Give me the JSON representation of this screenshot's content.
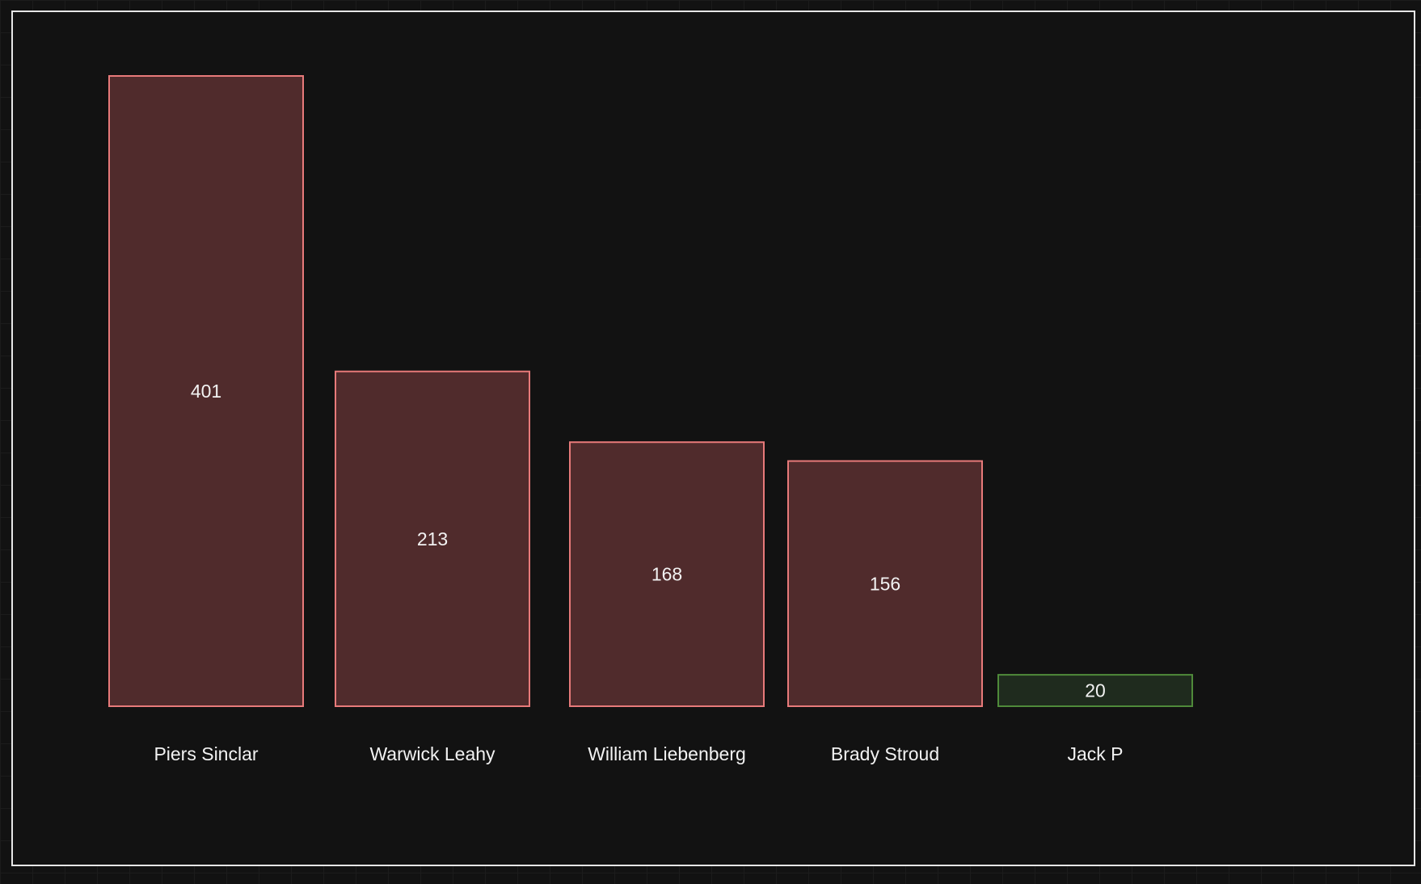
{
  "chart_data": {
    "type": "bar",
    "categories": [
      "Piers Sinclar",
      "Warwick Leahy",
      "William Liebenberg",
      "Brady Stroud",
      "Jack P"
    ],
    "values": [
      401,
      213,
      168,
      156,
      20
    ],
    "title": "",
    "xlabel": "",
    "ylabel": "",
    "ylim": [
      0,
      401
    ],
    "grid": false,
    "legend": "none",
    "colors": {
      "default_fill": "#502b2c",
      "default_stroke": "#e87a7a",
      "highlight_fill": "#1f2b1e",
      "highlight_stroke": "#4f8a3a"
    },
    "highlight_categories": [
      "Jack P"
    ]
  }
}
